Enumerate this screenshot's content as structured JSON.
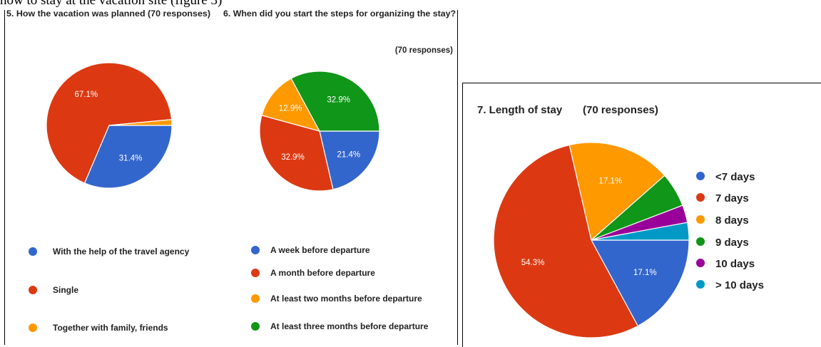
{
  "caption": "how to stay at the vacation site (figure 3)",
  "colors": {
    "blue": "#3366cc",
    "red": "#dc3912",
    "orange": "#ff9900",
    "green": "#109618",
    "purple": "#990099",
    "cyan": "#0099c6"
  },
  "chart_data": [
    {
      "type": "pie",
      "title": "5. How the vacation was planned (70 responses)",
      "legend_position": "bottom",
      "labels": [
        "With the help of the travel agency",
        "Single",
        "Together with family, friends"
      ],
      "values": [
        31.4,
        67.1,
        1.5
      ],
      "value_labels": [
        "31.4%",
        "67.1%",
        ""
      ],
      "colors": [
        "#3366cc",
        "#dc3912",
        "#ff9900"
      ]
    },
    {
      "type": "pie",
      "title": "6. When did you start the steps for organizing the stay?",
      "subtitle": "(70 responses)",
      "legend_position": "bottom",
      "labels": [
        "A week before departure",
        "A month before departure",
        "At least two months before departure",
        "At least three months before departure"
      ],
      "values": [
        21.4,
        32.9,
        12.9,
        32.9
      ],
      "value_labels": [
        "21.4%",
        "32.9%",
        "12.9%",
        "32.9%"
      ],
      "colors": [
        "#3366cc",
        "#dc3912",
        "#ff9900",
        "#109618"
      ]
    },
    {
      "type": "pie",
      "title": "7. Length of stay",
      "subtitle": "(70 responses)",
      "legend_position": "right",
      "labels": [
        "<7 days",
        "7 days",
        "8 days",
        "9 days",
        "10 days",
        "> 10 days"
      ],
      "values": [
        17.1,
        54.3,
        17.1,
        5.7,
        2.9,
        2.9
      ],
      "value_labels": [
        "17.1%",
        "54.3%",
        "17.1%",
        "",
        "",
        ""
      ],
      "colors": [
        "#3366cc",
        "#dc3912",
        "#ff9900",
        "#109618",
        "#990099",
        "#0099c6"
      ]
    }
  ]
}
